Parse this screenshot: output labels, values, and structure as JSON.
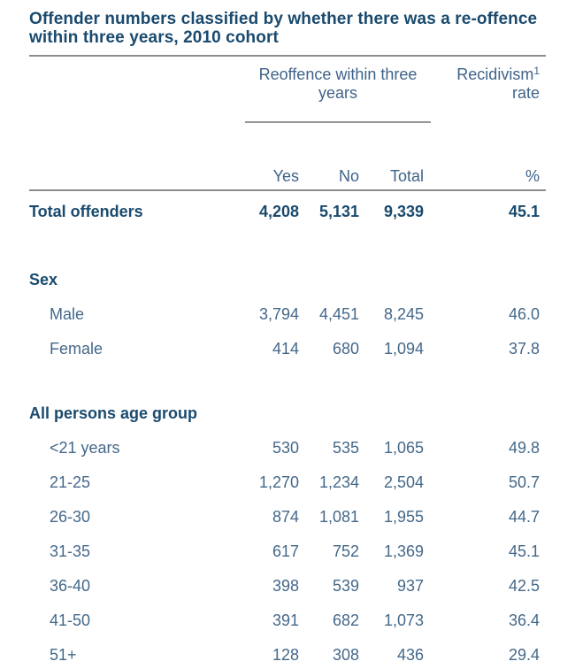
{
  "colors": {
    "heading_navy": "#1a4a6e",
    "body_blue": "#44688a",
    "rule_gray": "#8c8c8c",
    "background": "#ffffff"
  },
  "title": "Offender numbers classified by whether there was a re-offence within three years, 2010 cohort",
  "table": {
    "group_headers": {
      "reoffence": "Reoffence within three years",
      "recidivism_word": "Recidivism",
      "recidivism_footnote": "1",
      "recidivism_line2": "rate"
    },
    "columns": {
      "yes": "Yes",
      "no": "No",
      "total": "Total",
      "rate": "%"
    },
    "total_row": {
      "label": "Total offenders",
      "yes": "4,208",
      "no": "5,131",
      "total": "9,339",
      "rate": "45.1"
    },
    "sections": [
      {
        "heading": "Sex",
        "rows": [
          {
            "label": "Male",
            "yes": "3,794",
            "no": "4,451",
            "total": "8,245",
            "rate": "46.0"
          },
          {
            "label": "Female",
            "yes": "414",
            "no": "680",
            "total": "1,094",
            "rate": "37.8"
          }
        ]
      },
      {
        "heading": "All persons age group",
        "rows": [
          {
            "label": "<21 years",
            "yes": "530",
            "no": "535",
            "total": "1,065",
            "rate": "49.8"
          },
          {
            "label": "21-25",
            "yes": "1,270",
            "no": "1,234",
            "total": "2,504",
            "rate": "50.7"
          },
          {
            "label": "26-30",
            "yes": "874",
            "no": "1,081",
            "total": "1,955",
            "rate": "44.7"
          },
          {
            "label": "31-35",
            "yes": "617",
            "no": "752",
            "total": "1,369",
            "rate": "45.1"
          },
          {
            "label": "36-40",
            "yes": "398",
            "no": "539",
            "total": "937",
            "rate": "42.5"
          },
          {
            "label": "41-50",
            "yes": "391",
            "no": "682",
            "total": "1,073",
            "rate": "36.4"
          },
          {
            "label": "51+",
            "yes": "128",
            "no": "308",
            "total": "436",
            "rate": "29.4"
          }
        ]
      }
    ]
  },
  "chart_data": {
    "type": "table",
    "title": "Offender numbers classified by whether there was a re-offence within three years, 2010 cohort",
    "columns": [
      "Yes",
      "No",
      "Total",
      "%"
    ],
    "rows": [
      {
        "label": "Total offenders",
        "yes": 4208,
        "no": 5131,
        "total": 9339,
        "recidivism_rate_pct": 45.1
      },
      {
        "label": "Male",
        "yes": 3794,
        "no": 4451,
        "total": 8245,
        "recidivism_rate_pct": 46.0
      },
      {
        "label": "Female",
        "yes": 414,
        "no": 680,
        "total": 1094,
        "recidivism_rate_pct": 37.8
      },
      {
        "label": "<21 years",
        "yes": 530,
        "no": 535,
        "total": 1065,
        "recidivism_rate_pct": 49.8
      },
      {
        "label": "21-25",
        "yes": 1270,
        "no": 1234,
        "total": 2504,
        "recidivism_rate_pct": 50.7
      },
      {
        "label": "26-30",
        "yes": 874,
        "no": 1081,
        "total": 1955,
        "recidivism_rate_pct": 44.7
      },
      {
        "label": "31-35",
        "yes": 617,
        "no": 752,
        "total": 1369,
        "recidivism_rate_pct": 45.1
      },
      {
        "label": "36-40",
        "yes": 398,
        "no": 539,
        "total": 937,
        "recidivism_rate_pct": 42.5
      },
      {
        "label": "41-50",
        "yes": 391,
        "no": 682,
        "total": 1073,
        "recidivism_rate_pct": 36.4
      },
      {
        "label": "51+",
        "yes": 128,
        "no": 308,
        "total": 436,
        "recidivism_rate_pct": 29.4
      }
    ]
  }
}
